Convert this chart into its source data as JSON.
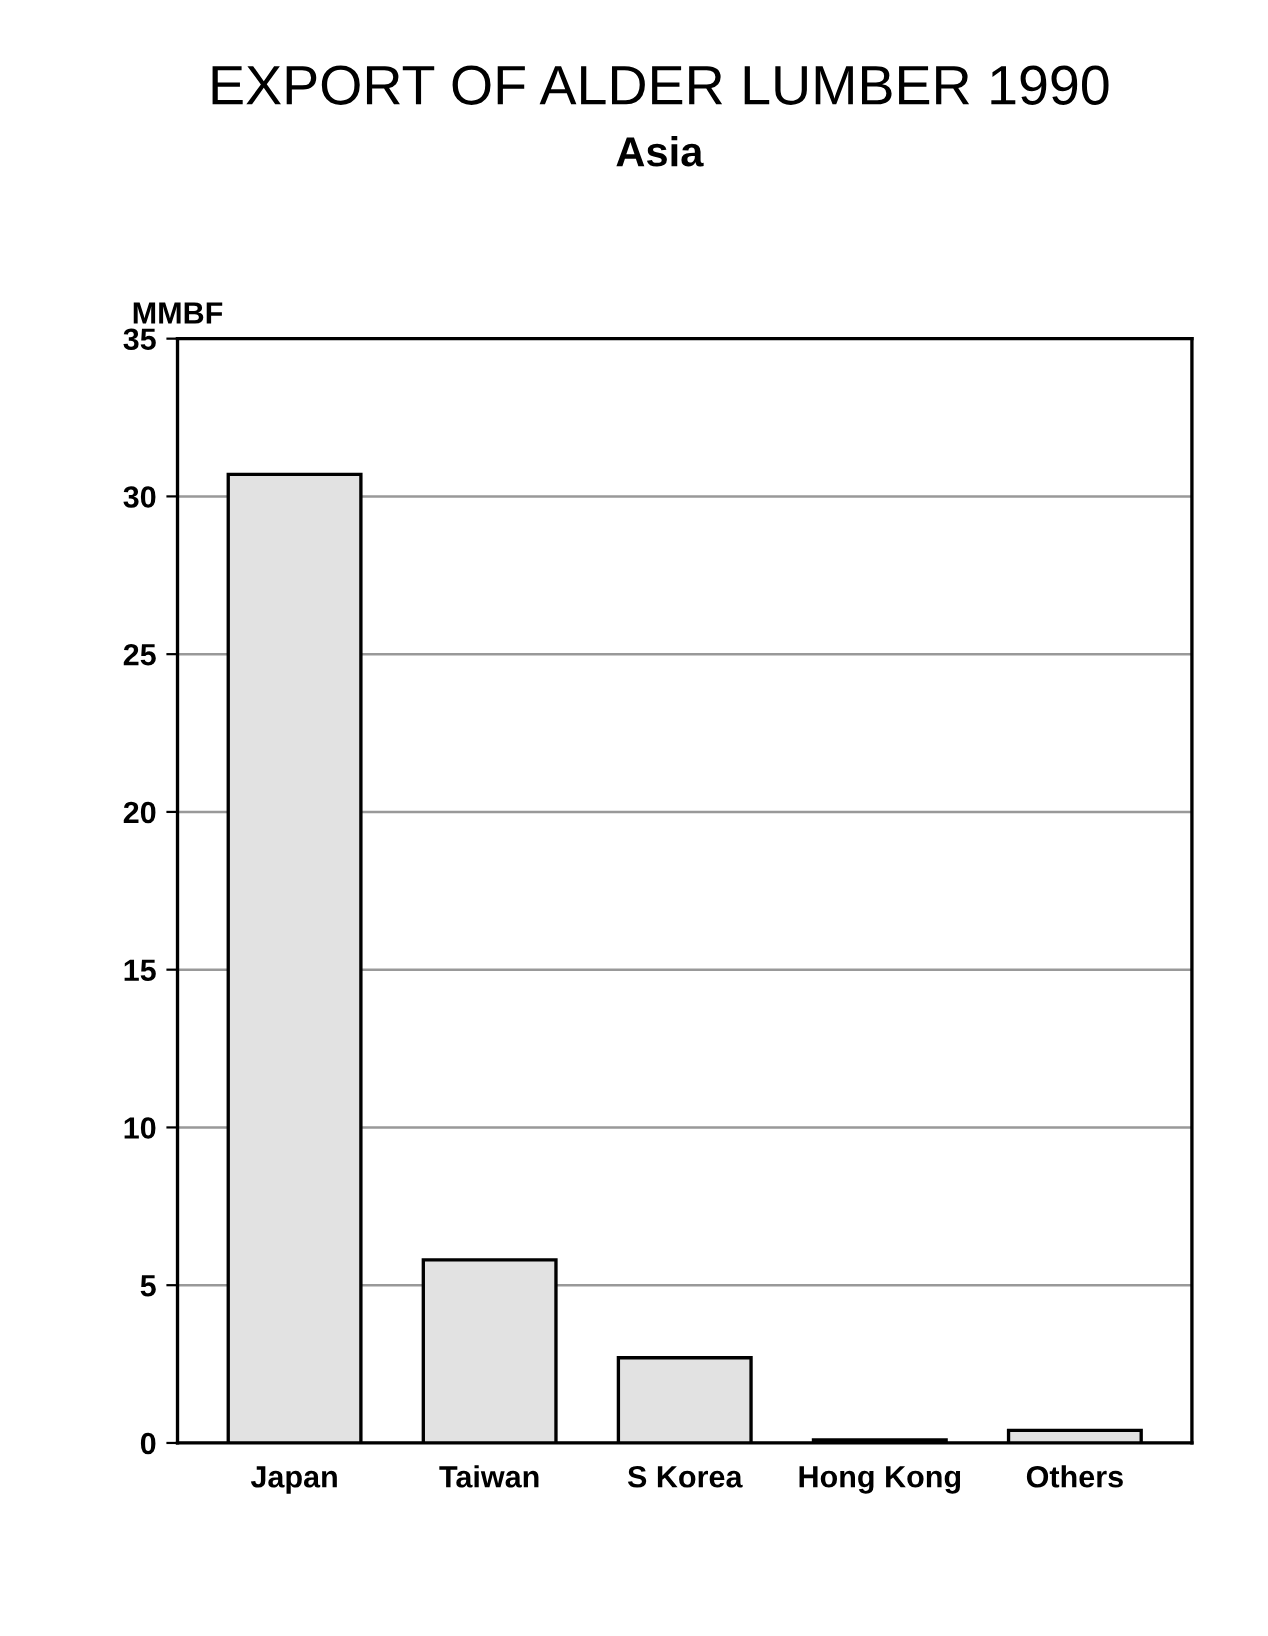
{
  "chart_data": {
    "type": "bar",
    "title": "EXPORT OF ALDER LUMBER 1990",
    "subtitle": "Asia",
    "ylabel": "MMBF",
    "categories": [
      "Japan",
      "Taiwan",
      "S Korea",
      "Hong Kong",
      "Others"
    ],
    "values": [
      30.7,
      5.8,
      2.7,
      0.1,
      0.4
    ],
    "color": "#e2e2e2",
    "ylim": [
      0,
      35
    ],
    "yticks": [
      0,
      5,
      10,
      15,
      20,
      25,
      30,
      35
    ],
    "grid": "y"
  }
}
